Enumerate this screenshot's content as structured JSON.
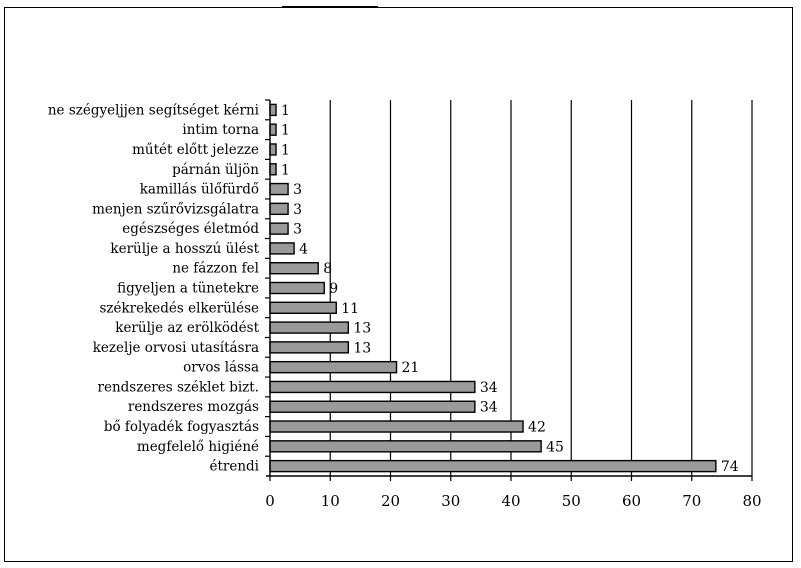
{
  "chart_data": {
    "type": "bar",
    "orientation": "horizontal",
    "title": "",
    "xlabel": "",
    "ylabel": "",
    "categories": [
      "ne szégyeljjen segítséget kérni",
      "intim torna",
      "műtét előtt jelezze",
      "párnán üljön",
      "kamillás ülőfürdő",
      "menjen szűrővizsgálatra",
      "egészséges életmód",
      "kerülje a hosszú ülést",
      "ne fázzon fel",
      "figyeljen a tünetekre",
      "székrekedés elkerülése",
      "kerülje az erölködést",
      "kezelje orvosi utasításra",
      "orvos lássa",
      "rendszeres széklet bizt.",
      "rendszeres mozgás",
      "bő folyadék fogyasztás",
      "megfelelő higiéné",
      "étrendi"
    ],
    "values": [
      1,
      1,
      1,
      1,
      3,
      3,
      3,
      4,
      8,
      9,
      11,
      13,
      13,
      21,
      34,
      34,
      42,
      45,
      74
    ],
    "xlim": [
      0,
      80
    ],
    "xticks": [
      "0",
      "10",
      "20",
      "30",
      "40",
      "50",
      "60",
      "70",
      "80"
    ],
    "grid": "vertical",
    "bar_color": "#9a9a9a",
    "bar_edge_color": "#000000",
    "legend": "none"
  }
}
